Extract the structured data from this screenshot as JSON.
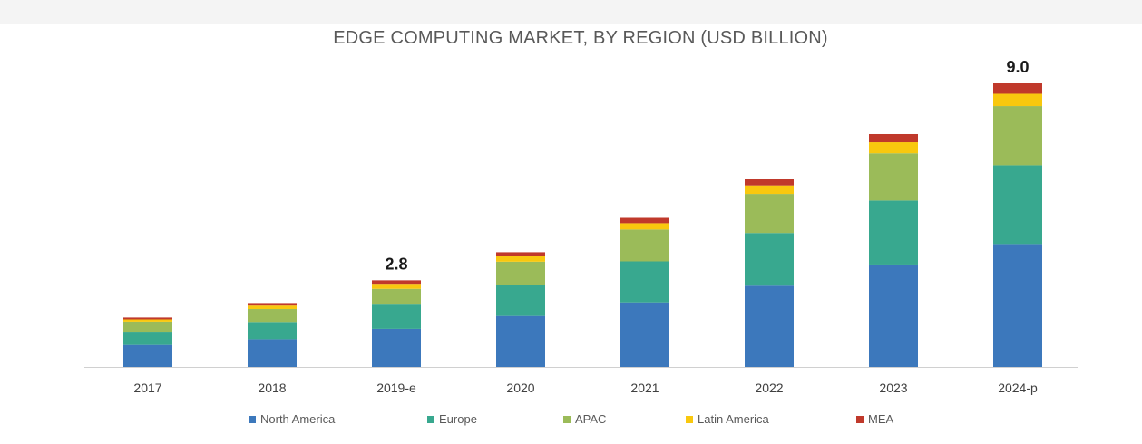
{
  "chart_data": {
    "type": "bar",
    "stacked": true,
    "title": "EDGE COMPUTING MARKET, BY REGION (USD BILLION)",
    "xlabel": "",
    "ylabel": "",
    "ylim": [
      0,
      9.0
    ],
    "grid": false,
    "legend_position": "bottom",
    "categories": [
      "2017",
      "2018",
      "2019-e",
      "2020",
      "2021",
      "2022",
      "2023",
      "2024-p"
    ],
    "series": [
      {
        "name": "North America",
        "color": "#3c78bc",
        "values": [
          0.7,
          0.88,
          1.21,
          1.62,
          2.05,
          2.58,
          3.25,
          3.9
        ]
      },
      {
        "name": "Europe",
        "color": "#38a88f",
        "values": [
          0.42,
          0.55,
          0.77,
          0.97,
          1.3,
          1.67,
          2.03,
          2.5
        ]
      },
      {
        "name": "APAC",
        "color": "#9bbb59",
        "values": [
          0.32,
          0.41,
          0.5,
          0.75,
          1.01,
          1.24,
          1.5,
          1.88
        ]
      },
      {
        "name": "Latin America",
        "color": "#f9c80e",
        "values": [
          0.07,
          0.11,
          0.16,
          0.17,
          0.2,
          0.27,
          0.35,
          0.39
        ]
      },
      {
        "name": "MEA",
        "color": "#c0392b",
        "values": [
          0.06,
          0.08,
          0.11,
          0.13,
          0.17,
          0.2,
          0.26,
          0.33
        ]
      }
    ],
    "totals_labels": [
      {
        "category": "2019-e",
        "text": "2.8"
      },
      {
        "category": "2024-p",
        "text": "9.0"
      }
    ]
  }
}
